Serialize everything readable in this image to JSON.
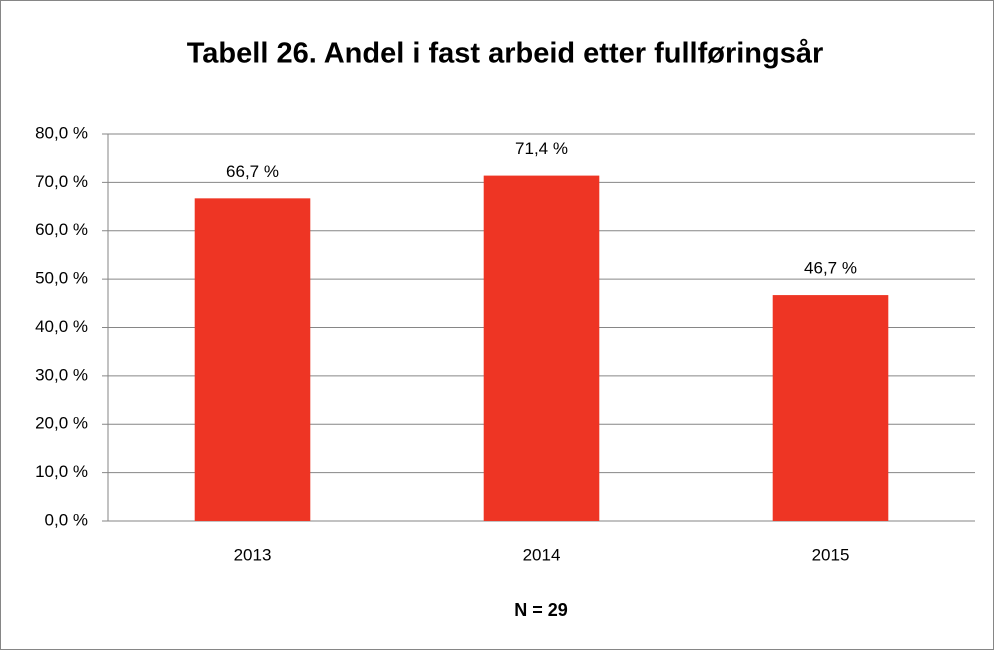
{
  "chart_data": {
    "type": "bar",
    "title": "Tabell 26. Andel i fast arbeid etter fullføringsår",
    "categories": [
      "2013",
      "2014",
      "2015"
    ],
    "values": [
      66.7,
      71.4,
      46.7
    ],
    "value_labels": [
      "66,7 %",
      "71,4 %",
      "46,7 %"
    ],
    "color": "#ee3524",
    "xlabel": "N = 29",
    "ylim": [
      0,
      80
    ],
    "yticks": [
      {
        "value": 0,
        "label": "0,0 %"
      },
      {
        "value": 10,
        "label": "10,0 %"
      },
      {
        "value": 20,
        "label": "20,0 %"
      },
      {
        "value": 30,
        "label": "30,0 %"
      },
      {
        "value": 40,
        "label": "40,0 %"
      },
      {
        "value": 50,
        "label": "50,0 %"
      },
      {
        "value": 60,
        "label": "60,0 %"
      },
      {
        "value": 70,
        "label": "70,0 %"
      },
      {
        "value": 80,
        "label": "80,0 %"
      }
    ],
    "grid": true
  }
}
